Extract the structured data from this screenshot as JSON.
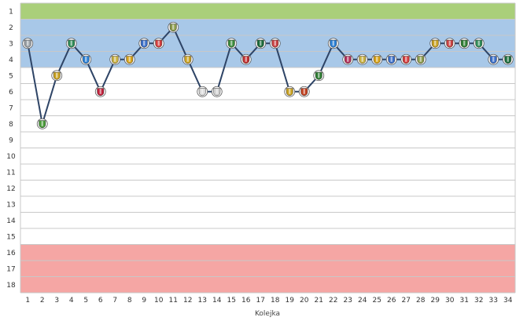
{
  "chart_data": {
    "type": "line",
    "xlabel": "Kolejka",
    "ylabel": "",
    "x": [
      1,
      2,
      3,
      4,
      5,
      6,
      7,
      8,
      9,
      10,
      11,
      12,
      13,
      14,
      15,
      16,
      17,
      18,
      19,
      20,
      21,
      22,
      23,
      24,
      25,
      26,
      27,
      28,
      29,
      30,
      31,
      32,
      33,
      34
    ],
    "y_ticks": [
      1,
      2,
      3,
      4,
      5,
      6,
      7,
      8,
      9,
      10,
      11,
      12,
      13,
      14,
      15,
      16,
      17,
      18
    ],
    "ylim": [
      1,
      18
    ],
    "y_inverted": true,
    "grid": true,
    "series": [
      {
        "name": "",
        "values": [
          3,
          8,
          5,
          3,
          4,
          6,
          4,
          4,
          3,
          3,
          2,
          4,
          6,
          6,
          3,
          4,
          3,
          3,
          6,
          6,
          5,
          3,
          4,
          4,
          4,
          4,
          4,
          4,
          3,
          3,
          3,
          3,
          4,
          4
        ]
      }
    ],
    "bands": [
      {
        "from": 1,
        "to": 1,
        "color": "#aacf7a"
      },
      {
        "from": 2,
        "to": 4,
        "color": "#a8c8e8"
      },
      {
        "from": 16,
        "to": 18,
        "color": "#f5a6a4"
      }
    ],
    "line_color": "#2e4466",
    "opponent_badge_colors": [
      "#9aa0a6",
      "#4a9a3a",
      "#c8a020",
      "#2e8b57",
      "#2a7fd4",
      "#c0203a",
      "#c8b040",
      "#d4a017",
      "#3a6ec8",
      "#d23c3c",
      "#8a9a4a",
      "#c8a020",
      "#d9d9d9",
      "#d0d0d0",
      "#3a8a3a",
      "#c03030",
      "#1a6a3a",
      "#c84040",
      "#c8a020",
      "#c04020",
      "#2e7d32",
      "#2a7fd4",
      "#b0305a",
      "#c8b040",
      "#d4a017",
      "#3a6ec8",
      "#d23c3c",
      "#8a9a4a",
      "#c8a020",
      "#c84040",
      "#2e7d32",
      "#2e8b57",
      "#3a6ec8",
      "#1a6a3a"
    ]
  }
}
